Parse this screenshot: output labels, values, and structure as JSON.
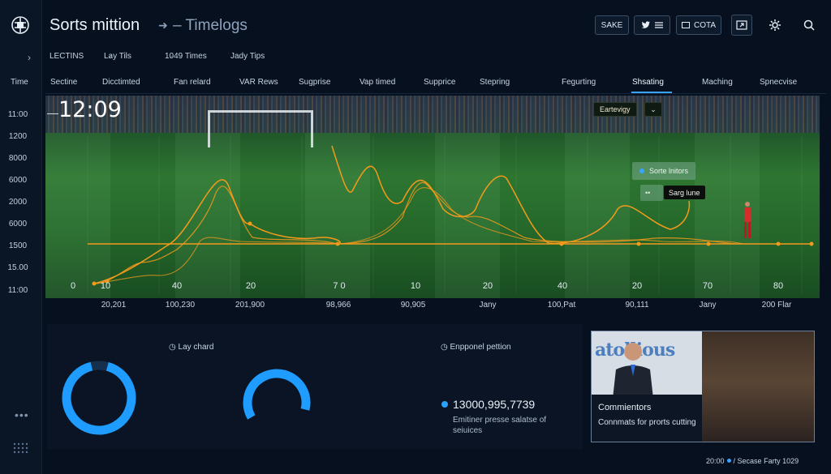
{
  "header": {
    "title": "Sorts mittion",
    "breadcrumb": "Timelogs",
    "buttons": {
      "save": "SAKE",
      "cota": "COTA"
    },
    "icons": [
      "logo-icon",
      "twitter-icon",
      "menu-icon",
      "tv-icon",
      "export-icon",
      "gear-icon",
      "search-icon"
    ]
  },
  "filters": [
    {
      "label": "LECTINS",
      "caret": false
    },
    {
      "label": "Lay Tils",
      "caret": true
    },
    {
      "label": "1049 Times",
      "caret": true
    },
    {
      "label": "Jady Tips",
      "caret": false
    }
  ],
  "tabs": [
    "Time",
    "Sectine",
    "Dicctimted",
    "Fan relard",
    "VAR Rews",
    "Sugprise",
    "Vap timed",
    "Supprice",
    "Stepring",
    "Fegurting",
    "Shsating",
    "Maching",
    "Spnecvise"
  ],
  "active_tab": "Shsating",
  "clock": "12:09",
  "overlay": {
    "dropdown": "Eartevigy",
    "chip1": "Sorte lnitors",
    "chip2": "Sarg lune",
    "chip2_prefix": "••"
  },
  "chart_data": {
    "type": "line",
    "y_tick_labels": [
      "11:00",
      "1200",
      "8000",
      "6000",
      "2000",
      "6000",
      "1500",
      "15.00",
      "11:00"
    ],
    "x_tick_labels": [
      "0",
      "10",
      "40",
      "20",
      "7 0",
      "10",
      "20",
      "40",
      "20",
      "70",
      "80"
    ],
    "x_sub_labels": [
      "20,201",
      "100,230",
      "201,900",
      "98,966",
      "90,905",
      "Jany",
      "100,Pat",
      "90,111",
      "Jany",
      "200 Flar"
    ],
    "baseline_level": 1500,
    "color": "#f39a1c"
  },
  "panels": {
    "donut1_label": "Lay chard",
    "donut2_label": "",
    "stat_label": "Enpponel pettion",
    "stat_value": "13000,995,7739",
    "stat_desc": "Emitiner presse salatse of seiuices",
    "donut_color": "#1e9cff",
    "donut1_fill": 0.92,
    "donut2_fill": 0.62
  },
  "video": {
    "title": "Commientors",
    "subtitle": "Connmats for prorts cutting",
    "banner_text": "atollious"
  },
  "footer": {
    "left": "20:00",
    "right": "Secase Farty 1029"
  }
}
